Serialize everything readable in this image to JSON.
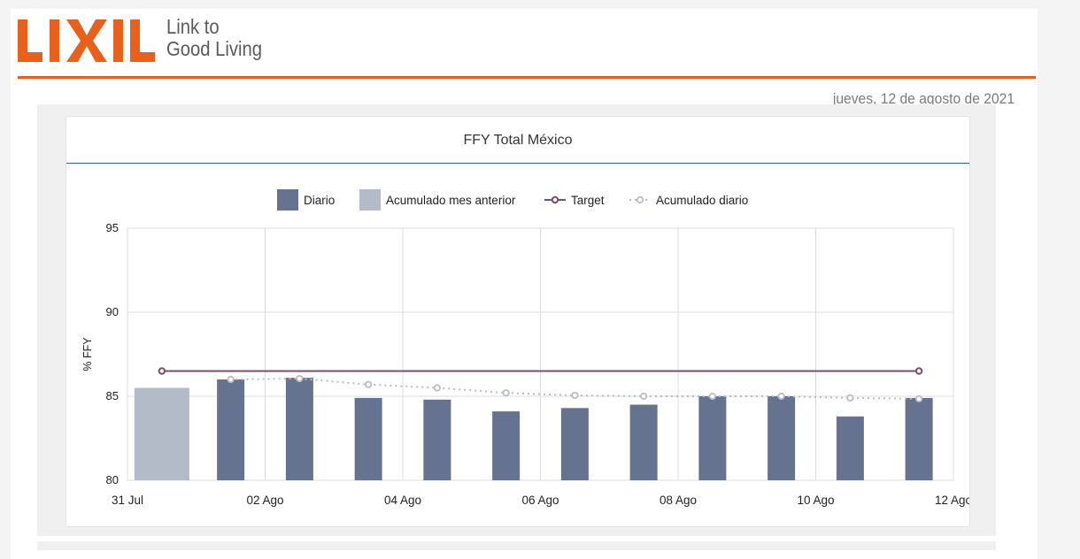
{
  "brand": {
    "logo_text": "LIXIL",
    "tagline_line1": "Link to",
    "tagline_line2": "Good Living",
    "accent_color": "#e8601c"
  },
  "header": {
    "date": "jueves, 12 de agosto de 2021"
  },
  "card": {
    "title": "FFY Total México"
  },
  "chart_data": {
    "type": "bar",
    "title": "FFY Total México",
    "ylabel": "% FFY",
    "xlabel": "",
    "ylim": [
      80,
      95
    ],
    "yticks": [
      80,
      85,
      90,
      95
    ],
    "xlim": [
      "2021-07-31",
      "2021-08-12"
    ],
    "xtick_labels": [
      "31 Jul",
      "02 Ago",
      "04 Ago",
      "06 Ago",
      "08 Ago",
      "10 Ago",
      "12 Ago"
    ],
    "legend_position": "top-center",
    "grid": true,
    "series": [
      {
        "name": "Diario",
        "kind": "bar",
        "color": "#667390",
        "points": [
          {
            "x": "2021-08-02",
            "y": 86.0
          },
          {
            "x": "2021-08-03",
            "y": 86.1
          },
          {
            "x": "2021-08-04",
            "y": 84.9
          },
          {
            "x": "2021-08-05",
            "y": 84.8
          },
          {
            "x": "2021-08-06",
            "y": 84.1
          },
          {
            "x": "2021-08-07",
            "y": 84.3
          },
          {
            "x": "2021-08-08",
            "y": 84.5
          },
          {
            "x": "2021-08-09",
            "y": 85.0
          },
          {
            "x": "2021-08-10",
            "y": 85.0
          },
          {
            "x": "2021-08-11",
            "y": 83.8
          },
          {
            "x": "2021-08-12",
            "y": 84.9
          }
        ]
      },
      {
        "name": "Acumulado mes anterior",
        "kind": "bar",
        "color": "#b3bac8",
        "points": [
          {
            "x": "2021-08-01",
            "y": 85.5
          }
        ]
      },
      {
        "name": "Target",
        "kind": "line",
        "color": "#7b4f6b",
        "points": [
          {
            "x": "2021-08-01",
            "y": 86.5
          },
          {
            "x": "2021-08-12",
            "y": 86.5
          }
        ]
      },
      {
        "name": "Acumulado diario",
        "kind": "dotted-line",
        "color": "#b8bcc8",
        "points": [
          {
            "x": "2021-08-02",
            "y": 86.0
          },
          {
            "x": "2021-08-03",
            "y": 86.05
          },
          {
            "x": "2021-08-04",
            "y": 85.7
          },
          {
            "x": "2021-08-05",
            "y": 85.5
          },
          {
            "x": "2021-08-06",
            "y": 85.2
          },
          {
            "x": "2021-08-07",
            "y": 85.05
          },
          {
            "x": "2021-08-08",
            "y": 85.0
          },
          {
            "x": "2021-08-09",
            "y": 85.0
          },
          {
            "x": "2021-08-10",
            "y": 85.0
          },
          {
            "x": "2021-08-11",
            "y": 84.9
          },
          {
            "x": "2021-08-12",
            "y": 84.85
          }
        ]
      }
    ]
  }
}
